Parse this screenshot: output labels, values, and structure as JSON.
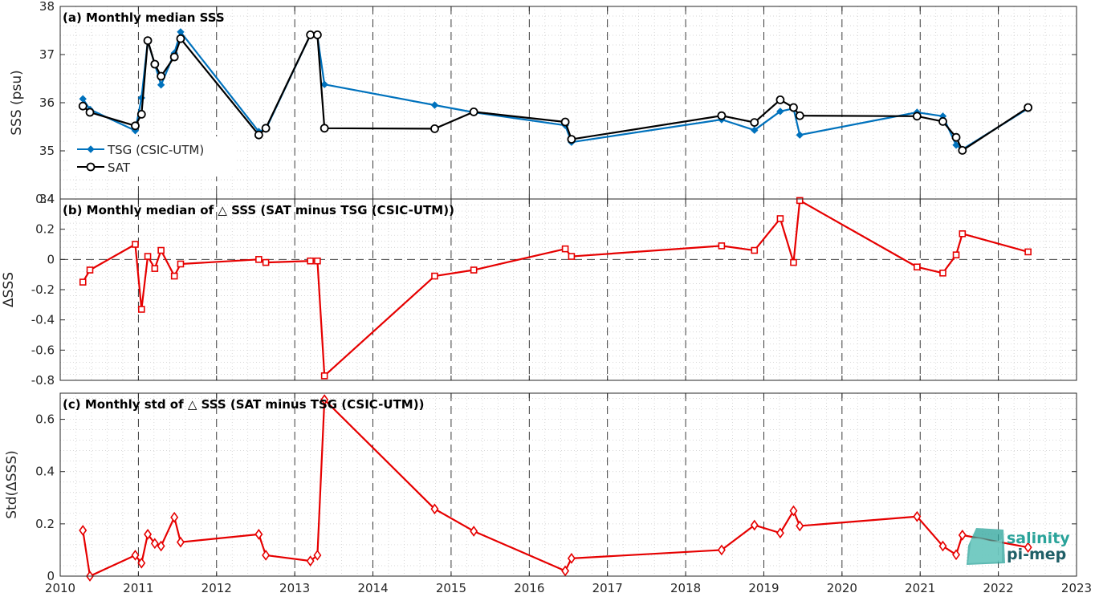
{
  "chart_data": [
    {
      "type": "line",
      "title": "(a) Monthly median SSS",
      "xlabel": "",
      "ylabel": "SSS (psu)",
      "xlim": [
        2010,
        2023
      ],
      "ylim": [
        34,
        38
      ],
      "yticks": [
        34,
        35,
        36,
        37,
        38
      ],
      "legend_position": "bottom-left",
      "grid": true,
      "series": [
        {
          "name": "TSG (CSIC-UTM)",
          "color": "#0072bd",
          "marker": "diamond-filled",
          "x": [
            2010.29,
            2010.38,
            2010.96,
            2011.04,
            2011.12,
            2011.21,
            2011.29,
            2011.46,
            2011.54,
            2012.54,
            2012.63,
            2013.2,
            2013.29,
            2013.38,
            2014.79,
            2015.29,
            2016.46,
            2016.54,
            2018.46,
            2018.88,
            2019.21,
            2019.38,
            2019.46,
            2020.96,
            2021.29,
            2021.46,
            2021.54,
            2022.38
          ],
          "y": [
            36.08,
            35.86,
            35.42,
            36.1,
            37.28,
            36.8,
            36.37,
            37.03,
            37.47,
            35.4,
            35.45,
            37.41,
            37.38,
            36.38,
            35.95,
            35.8,
            35.53,
            35.18,
            35.65,
            35.43,
            35.82,
            35.88,
            35.33,
            35.8,
            35.72,
            35.12,
            35.03,
            35.88
          ]
        },
        {
          "name": "SAT",
          "color": "#000000",
          "marker": "circle-open",
          "x": [
            2010.29,
            2010.38,
            2010.96,
            2011.04,
            2011.12,
            2011.21,
            2011.29,
            2011.46,
            2011.54,
            2012.54,
            2012.63,
            2013.2,
            2013.29,
            2013.38,
            2014.79,
            2015.29,
            2016.46,
            2016.54,
            2018.46,
            2018.88,
            2019.21,
            2019.38,
            2019.46,
            2020.96,
            2021.29,
            2021.46,
            2021.54,
            2022.38
          ],
          "y": [
            35.93,
            35.8,
            35.52,
            35.76,
            37.29,
            36.8,
            36.55,
            36.95,
            37.33,
            35.33,
            35.47,
            37.41,
            37.41,
            35.47,
            35.46,
            35.81,
            35.6,
            35.24,
            35.73,
            35.59,
            36.06,
            35.9,
            35.73,
            35.72,
            35.61,
            35.28,
            35.01,
            35.9
          ]
        }
      ]
    },
    {
      "type": "line",
      "title": "(b) Monthly median of △ SSS (SAT minus TSG (CSIC-UTM))",
      "xlabel": "",
      "ylabel": "ΔSSS",
      "xlim": [
        2010,
        2023
      ],
      "ylim": [
        -0.8,
        0.4
      ],
      "yticks": [
        -0.8,
        -0.6,
        -0.4,
        -0.2,
        0,
        0.2,
        0.4
      ],
      "ytick_labels": [
        "-0.8",
        "-0.6",
        "-0.4",
        "-0.2",
        "0",
        "0.2",
        "0.4"
      ],
      "zero_line": true,
      "grid": true,
      "series": [
        {
          "color": "#e60000",
          "marker": "square-open",
          "x": [
            2010.29,
            2010.38,
            2010.96,
            2011.04,
            2011.12,
            2011.21,
            2011.29,
            2011.46,
            2011.54,
            2012.54,
            2012.63,
            2013.2,
            2013.29,
            2013.38,
            2014.79,
            2015.29,
            2016.46,
            2016.54,
            2018.46,
            2018.88,
            2019.21,
            2019.38,
            2019.46,
            2020.96,
            2021.29,
            2021.46,
            2021.54,
            2022.38
          ],
          "y": [
            -0.15,
            -0.07,
            0.1,
            -0.33,
            0.02,
            -0.06,
            0.06,
            -0.11,
            -0.03,
            0.0,
            -0.02,
            -0.01,
            -0.01,
            -0.77,
            -0.11,
            -0.07,
            0.07,
            0.02,
            0.09,
            0.06,
            0.27,
            -0.02,
            0.39,
            -0.05,
            -0.09,
            0.03,
            0.17,
            0.05
          ]
        }
      ]
    },
    {
      "type": "line",
      "title": "(c) Monthly std of △ SSS (SAT minus TSG (CSIC-UTM))",
      "xlabel": "",
      "ylabel": "Std(ΔSSS)",
      "xlim": [
        2010,
        2023
      ],
      "ylim": [
        0,
        0.7
      ],
      "yticks": [
        0,
        0.2,
        0.4,
        0.6
      ],
      "ytick_labels": [
        "0",
        "0.2",
        "0.4",
        "0.6"
      ],
      "xticks": [
        2010,
        2011,
        2012,
        2013,
        2014,
        2015,
        2016,
        2017,
        2018,
        2019,
        2020,
        2021,
        2022,
        2023
      ],
      "grid": true,
      "series": [
        {
          "color": "#e60000",
          "marker": "diamond-open",
          "x": [
            2010.29,
            2010.38,
            2010.96,
            2011.04,
            2011.12,
            2011.21,
            2011.29,
            2011.46,
            2011.54,
            2012.54,
            2012.63,
            2013.2,
            2013.29,
            2013.38,
            2014.79,
            2015.29,
            2016.46,
            2016.54,
            2018.46,
            2018.88,
            2019.21,
            2019.38,
            2019.46,
            2020.96,
            2021.29,
            2021.46,
            2021.54,
            2022.38
          ],
          "y": [
            0.175,
            0.0,
            0.08,
            0.05,
            0.16,
            0.125,
            0.115,
            0.225,
            0.13,
            0.16,
            0.08,
            0.058,
            0.08,
            0.675,
            0.257,
            0.172,
            0.02,
            0.068,
            0.1,
            0.195,
            0.165,
            0.25,
            0.192,
            0.228,
            0.115,
            0.082,
            0.157,
            0.11
          ]
        }
      ]
    }
  ],
  "logo": {
    "line1": "salinity",
    "line2": "pi-mep"
  }
}
